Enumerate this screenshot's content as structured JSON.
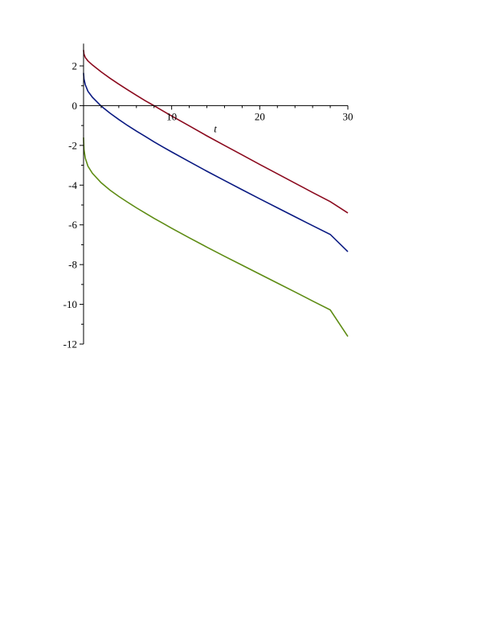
{
  "chart_data": {
    "type": "line",
    "title": "",
    "xlabel": "t",
    "ylabel": "",
    "xlim": [
      0,
      30
    ],
    "ylim": [
      -12,
      3
    ],
    "grid": false,
    "legend": "none",
    "x_ticks": [
      10,
      20,
      30
    ],
    "x_tick_labels": [
      "10",
      "20",
      "30"
    ],
    "y_ticks": [
      2,
      0,
      -2,
      -4,
      -6,
      -8,
      -10,
      -12
    ],
    "y_tick_labels": [
      "2",
      "0",
      "-2",
      "-4",
      "-6",
      "-8",
      "-10",
      "-12"
    ],
    "series": [
      {
        "color": "#8b0a1e",
        "x": [
          0,
          0.05,
          0.2,
          0.5,
          1,
          2,
          3,
          4,
          5,
          6,
          7,
          8,
          9,
          10,
          12,
          14,
          16,
          18,
          20,
          22,
          24,
          26,
          28,
          30
        ],
        "y": [
          2.8,
          2.6,
          2.42,
          2.25,
          2.05,
          1.7,
          1.38,
          1.08,
          0.8,
          0.52,
          0.25,
          0.0,
          -0.26,
          -0.52,
          -1.02,
          -1.52,
          -2.0,
          -2.48,
          -2.96,
          -3.43,
          -3.9,
          -4.37,
          -4.83,
          -5.4
        ]
      },
      {
        "color": "#0a1a82",
        "x": [
          0,
          0.05,
          0.2,
          0.5,
          1,
          2,
          3,
          4,
          5,
          6,
          7,
          8,
          9,
          10,
          12,
          14,
          16,
          18,
          20,
          22,
          24,
          26,
          28,
          30
        ],
        "y": [
          1.65,
          1.35,
          1.05,
          0.72,
          0.42,
          -0.02,
          -0.38,
          -0.7,
          -1.0,
          -1.28,
          -1.55,
          -1.82,
          -2.08,
          -2.33,
          -2.82,
          -3.3,
          -3.77,
          -4.23,
          -4.69,
          -5.14,
          -5.59,
          -6.04,
          -6.48,
          -7.35
        ]
      },
      {
        "color": "#5e8c14",
        "x": [
          0,
          0.05,
          0.2,
          0.5,
          1,
          2,
          3,
          4,
          5,
          6,
          7,
          8,
          9,
          10,
          12,
          14,
          16,
          18,
          20,
          22,
          24,
          26,
          28,
          30
        ],
        "y": [
          -1.6,
          -2.2,
          -2.65,
          -3.05,
          -3.4,
          -3.88,
          -4.25,
          -4.57,
          -4.86,
          -5.14,
          -5.41,
          -5.67,
          -5.92,
          -6.17,
          -6.65,
          -7.12,
          -7.58,
          -8.03,
          -8.48,
          -8.93,
          -9.38,
          -9.83,
          -10.28,
          -11.62
        ]
      }
    ]
  }
}
